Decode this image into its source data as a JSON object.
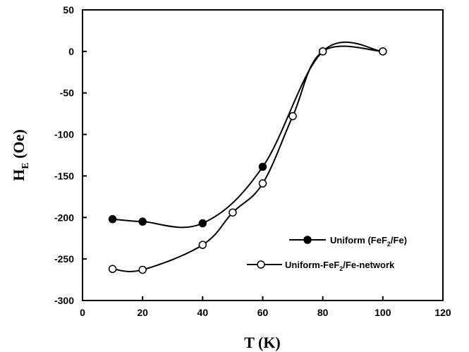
{
  "chart_data": {
    "type": "line",
    "xlabel": "T (K)",
    "ylabel": "H_E (Oe)",
    "xlim": [
      0,
      120
    ],
    "ylim": [
      -300,
      50
    ],
    "xticks": [
      0,
      20,
      40,
      60,
      80,
      100,
      120
    ],
    "yticks": [
      -300,
      -250,
      -200,
      -150,
      -100,
      -50,
      0,
      50
    ],
    "grid": false,
    "legend_position": "bottom-right",
    "series": [
      {
        "name": "Uniform (FeF2/Fe)",
        "marker": "filled-circle",
        "x": [
          10,
          20,
          40,
          60,
          80,
          100
        ],
        "y": [
          -202,
          -205,
          -207,
          -139,
          0,
          0
        ]
      },
      {
        "name": "Uniform-FeF2/Fe-network",
        "marker": "open-circle",
        "x": [
          10,
          20,
          40,
          50,
          60,
          70,
          80,
          100
        ],
        "y": [
          -262,
          -263,
          -233,
          -194,
          -159,
          -78,
          0,
          0
        ]
      }
    ]
  }
}
